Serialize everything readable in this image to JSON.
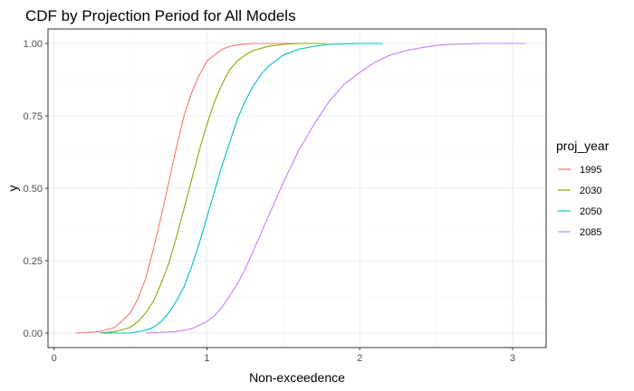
{
  "chart_data": {
    "type": "line",
    "title": "CDF by Projection Period for All Models",
    "xlabel": "Non-exceedence",
    "ylabel": "y",
    "xlim": [
      -0.04,
      3.22
    ],
    "ylim": [
      -0.05,
      1.05
    ],
    "x_ticks": [
      0,
      1,
      2,
      3
    ],
    "y_ticks": [
      0.0,
      0.25,
      0.5,
      0.75,
      1.0
    ],
    "x_tick_labels": [
      "0",
      "1",
      "2",
      "3"
    ],
    "y_tick_labels": [
      "0.00",
      "0.25",
      "0.50",
      "0.75",
      "1.00"
    ],
    "grid": true,
    "legend": {
      "title": "proj_year",
      "position": "right"
    },
    "series": [
      {
        "name": "1995",
        "color": "#F8766D",
        "x": [
          0.14,
          0.3,
          0.4,
          0.5,
          0.55,
          0.6,
          0.65,
          0.7,
          0.75,
          0.8,
          0.85,
          0.9,
          0.95,
          1.0,
          1.05,
          1.1,
          1.15,
          1.2,
          1.3,
          1.4,
          1.5,
          1.7
        ],
        "y": [
          0.0,
          0.005,
          0.02,
          0.07,
          0.12,
          0.19,
          0.29,
          0.4,
          0.52,
          0.64,
          0.75,
          0.83,
          0.89,
          0.94,
          0.96,
          0.98,
          0.99,
          0.995,
          1.0,
          1.0,
          1.0,
          1.0
        ]
      },
      {
        "name": "2030",
        "color": "#7CAE00",
        "x": [
          0.3,
          0.4,
          0.5,
          0.55,
          0.6,
          0.65,
          0.7,
          0.75,
          0.8,
          0.85,
          0.9,
          0.95,
          1.0,
          1.05,
          1.1,
          1.15,
          1.2,
          1.25,
          1.3,
          1.4,
          1.5,
          1.6,
          1.78
        ],
        "y": [
          0.0,
          0.005,
          0.02,
          0.04,
          0.07,
          0.11,
          0.17,
          0.24,
          0.33,
          0.43,
          0.53,
          0.63,
          0.72,
          0.8,
          0.86,
          0.91,
          0.94,
          0.96,
          0.975,
          0.99,
          0.997,
          1.0,
          1.0
        ]
      },
      {
        "name": "2050",
        "color": "#00BFC4",
        "x": [
          0.3,
          0.5,
          0.6,
          0.65,
          0.7,
          0.75,
          0.8,
          0.85,
          0.9,
          0.95,
          1.0,
          1.05,
          1.1,
          1.15,
          1.2,
          1.25,
          1.3,
          1.35,
          1.4,
          1.5,
          1.6,
          1.7,
          1.8,
          2.0,
          2.15
        ],
        "y": [
          0.0,
          0.0,
          0.01,
          0.02,
          0.04,
          0.07,
          0.11,
          0.16,
          0.23,
          0.31,
          0.4,
          0.49,
          0.58,
          0.66,
          0.74,
          0.8,
          0.85,
          0.89,
          0.92,
          0.96,
          0.98,
          0.99,
          0.997,
          1.0,
          1.0
        ]
      },
      {
        "name": "2085",
        "color": "#C77CFF",
        "x": [
          0.6,
          0.8,
          0.9,
          1.0,
          1.05,
          1.1,
          1.15,
          1.2,
          1.25,
          1.3,
          1.35,
          1.4,
          1.45,
          1.5,
          1.6,
          1.7,
          1.8,
          1.9,
          2.0,
          2.1,
          2.2,
          2.3,
          2.4,
          2.5,
          2.6,
          2.8,
          3.08
        ],
        "y": [
          0.0,
          0.005,
          0.015,
          0.04,
          0.06,
          0.09,
          0.13,
          0.17,
          0.22,
          0.28,
          0.34,
          0.4,
          0.46,
          0.52,
          0.63,
          0.72,
          0.8,
          0.86,
          0.9,
          0.935,
          0.96,
          0.975,
          0.985,
          0.993,
          0.997,
          1.0,
          1.0
        ]
      }
    ]
  }
}
